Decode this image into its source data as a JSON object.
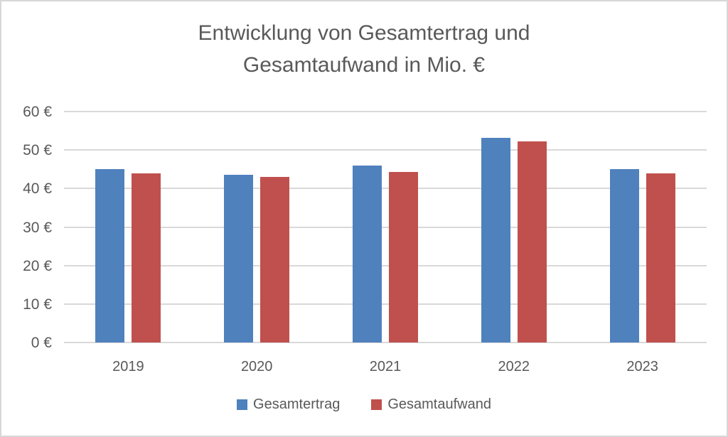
{
  "chart_data": {
    "type": "bar",
    "title": "Entwicklung von Gesamtertrag und Gesamtaufwand in Mio. €",
    "title_lines": [
      "Entwicklung von Gesamtertrag und",
      "Gesamtaufwand in Mio. €"
    ],
    "categories": [
      "2019",
      "2020",
      "2021",
      "2022",
      "2023"
    ],
    "series": [
      {
        "name": "Gesamtertrag",
        "color": "#4F81BD",
        "values": [
          45.0,
          43.5,
          46.0,
          53.2,
          45.0
        ]
      },
      {
        "name": "Gesamtaufwand",
        "color": "#C0504D",
        "values": [
          44.0,
          43.1,
          44.4,
          52.2,
          44.0
        ]
      }
    ],
    "xlabel": "",
    "ylabel": "",
    "ylim": [
      0,
      60
    ],
    "y_step": 10,
    "y_tick_labels": [
      "0 €",
      "10 €",
      "20 €",
      "30 €",
      "40 €",
      "50 €",
      "60 €"
    ],
    "grid": "horizontal",
    "legend_position": "bottom",
    "colors": {
      "text": "#595959",
      "gridline": "#D9D9D9",
      "border": "#D7D7D7",
      "background": "#FFFFFF"
    }
  }
}
